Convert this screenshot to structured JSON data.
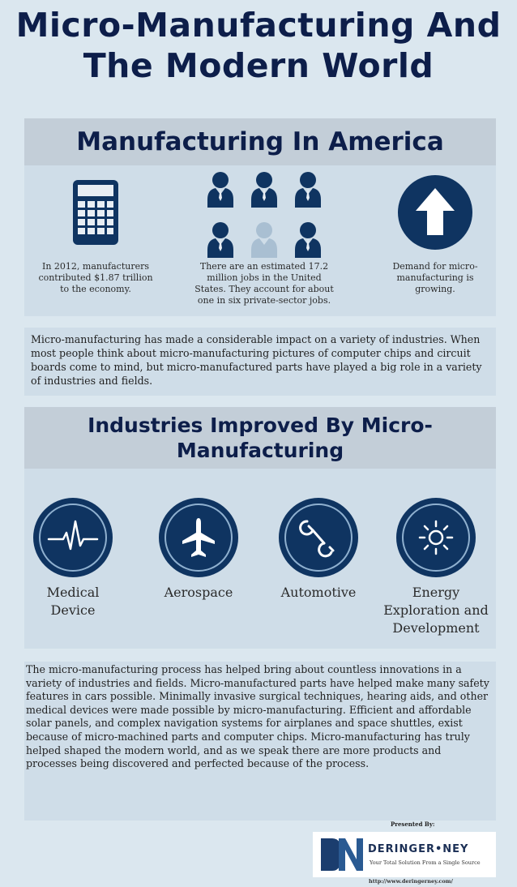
{
  "title": {
    "line1": "Micro-Manufacturing And",
    "line2": "The Modern World"
  },
  "america": {
    "heading": "Manufacturing In America",
    "stats": [
      {
        "icon": "calculator-icon",
        "text": "In 2012, manufacturers contributed $1.87 trillion to the economy."
      },
      {
        "icon": "workers-icon",
        "text": "There are an estimated 17.2 million jobs in the United States. They account for about one in six private-sector jobs."
      },
      {
        "icon": "up-arrow-icon",
        "text": "Demand for micro-manufacturing is growing."
      }
    ]
  },
  "intro": {
    "text": "Micro-manufacturing has made a considerable impact on a variety of industries.  When most people think about micro-manufacturing pictures of computer chips and circuit boards come to mind, but micro-manufactured parts have played a big role in a variety of industries and fields."
  },
  "industries": {
    "heading_line1": "Industries Improved By Micro-",
    "heading_line2": "Manufacturing",
    "items": [
      {
        "icon": "heartbeat-icon",
        "line1": "Medical",
        "line2": "Device",
        "line3": ""
      },
      {
        "icon": "airplane-icon",
        "line1": "Aerospace",
        "line2": "",
        "line3": ""
      },
      {
        "icon": "wrench-icon",
        "line1": "Automotive",
        "line2": "",
        "line3": ""
      },
      {
        "icon": "sun-icon",
        "line1": "Energy",
        "line2": "Exploration and",
        "line3": "Development"
      }
    ]
  },
  "process": {
    "text": "The micro-manufacturing process has helped bring about countless innovations in a variety of industries and fields.  Micro-manufactured parts have helped make many safety features in cars possible.  Minimally invasive surgical techniques, hearing aids, and other medical devices were made possible by micro-manufacturing.  Efficient and affordable solar panels, and complex navigation systems for airplanes and space shuttles, exist because of micro-machined parts and computer chips.  Micro-manufacturing has truly helped shaped the modern world, and as we speak there are more products and processes being discovered and perfected because of the process."
  },
  "footer": {
    "presented_by": "Presented By:",
    "company": "DERINGER•NEY",
    "tagline": "Your Total Solution From a Single Source",
    "url": "http://www.deringerney.com/"
  },
  "colors": {
    "navy": "#0d1e4a",
    "icon_blue": "#0f3461",
    "band_gray": "#c3ced8",
    "panel": "#cfdde8",
    "background": "#dbe7ef",
    "person_light": "#a9bfd2"
  }
}
